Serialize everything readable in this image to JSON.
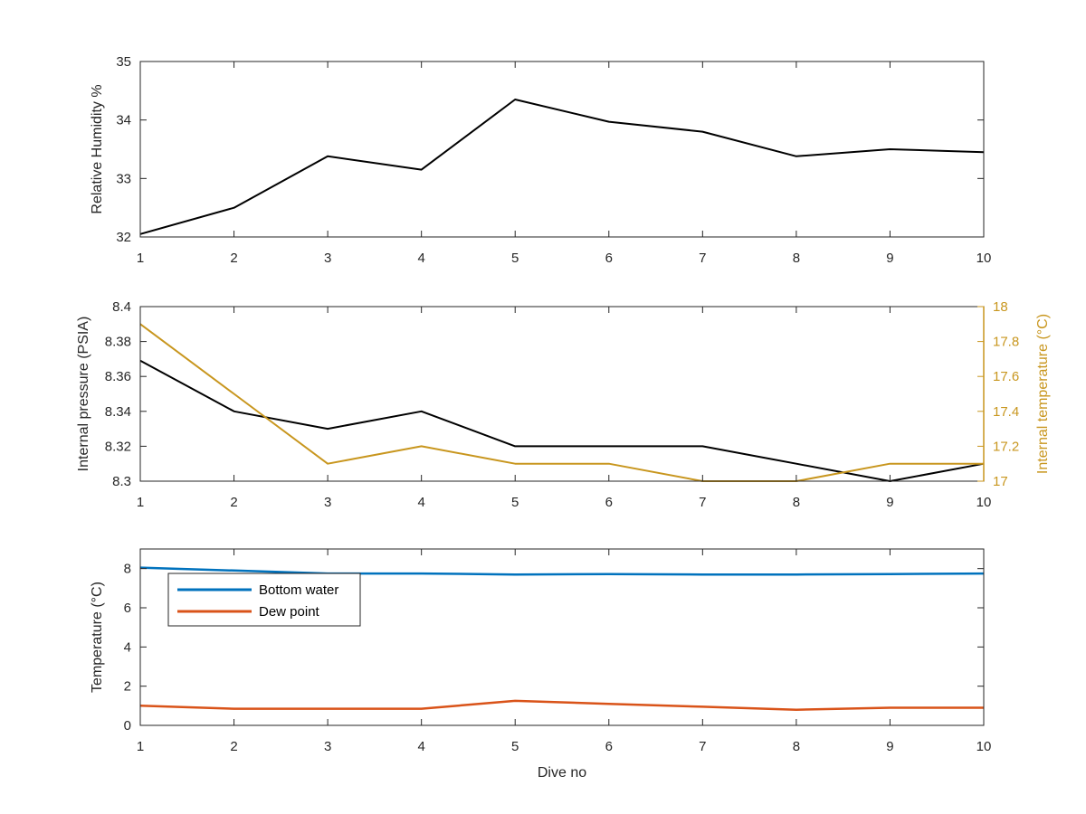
{
  "colors": {
    "black": "#000000",
    "axis": "#262626",
    "temp_right": "#C8961E",
    "bottom_water": "#0072BD",
    "dew_point": "#D95319"
  },
  "chart_data": [
    {
      "type": "line",
      "xlabel": "",
      "ylabel": "Relative Humidity %",
      "xlim": [
        1,
        10
      ],
      "ylim": [
        32,
        35
      ],
      "xticks": [
        "1",
        "2",
        "3",
        "4",
        "5",
        "6",
        "7",
        "8",
        "9",
        "10"
      ],
      "yticks": [
        "32",
        "33",
        "34",
        "35"
      ],
      "grid": false,
      "x": [
        1,
        2,
        3,
        4,
        5,
        6,
        7,
        8,
        9,
        10
      ],
      "series": [
        {
          "color": "#000000",
          "values": [
            32.05,
            32.5,
            33.38,
            33.15,
            34.35,
            33.97,
            33.8,
            33.38,
            33.5,
            33.45
          ]
        }
      ]
    },
    {
      "type": "line",
      "xlabel": "",
      "ylabel": "Internal pressure (PSIA)",
      "ylabel_right": "Internal temperature (°C)",
      "xlim": [
        1,
        10
      ],
      "ylim": [
        8.3,
        8.4
      ],
      "ylim_right": [
        17,
        18
      ],
      "xticks": [
        "1",
        "2",
        "3",
        "4",
        "5",
        "6",
        "7",
        "8",
        "9",
        "10"
      ],
      "yticks": [
        "8.3",
        "8.32",
        "8.34",
        "8.36",
        "8.38",
        "8.4"
      ],
      "yticks_right": [
        "17",
        "17.2",
        "17.4",
        "17.6",
        "17.8",
        "18"
      ],
      "grid": false,
      "x": [
        1,
        2,
        3,
        4,
        5,
        6,
        7,
        8,
        9,
        10
      ],
      "series": [
        {
          "axis": "left",
          "color": "#000000",
          "values": [
            8.369,
            8.34,
            8.33,
            8.34,
            8.32,
            8.32,
            8.32,
            8.31,
            8.3,
            8.31
          ]
        },
        {
          "axis": "right",
          "color": "#C8961E",
          "values": [
            17.9,
            17.5,
            17.1,
            17.2,
            17.1,
            17.1,
            17.0,
            17.0,
            17.1,
            17.1
          ]
        }
      ]
    },
    {
      "type": "line",
      "xlabel": "Dive no",
      "ylabel": "Temperature (°C)",
      "xlim": [
        1,
        10
      ],
      "ylim": [
        0,
        9
      ],
      "xticks": [
        "1",
        "2",
        "3",
        "4",
        "5",
        "6",
        "7",
        "8",
        "9",
        "10"
      ],
      "yticks": [
        "0",
        "2",
        "4",
        "6",
        "8"
      ],
      "grid": false,
      "legend": "top-left",
      "x": [
        1,
        2,
        3,
        4,
        5,
        6,
        7,
        8,
        9,
        10
      ],
      "series": [
        {
          "name": "Bottom water",
          "color": "#0072BD",
          "values": [
            8.05,
            7.9,
            7.75,
            7.75,
            7.7,
            7.72,
            7.7,
            7.7,
            7.72,
            7.75
          ]
        },
        {
          "name": "Dew point",
          "color": "#D95319",
          "values": [
            1.0,
            0.85,
            0.85,
            0.85,
            1.25,
            1.1,
            0.95,
            0.8,
            0.9,
            0.9
          ]
        }
      ]
    }
  ]
}
